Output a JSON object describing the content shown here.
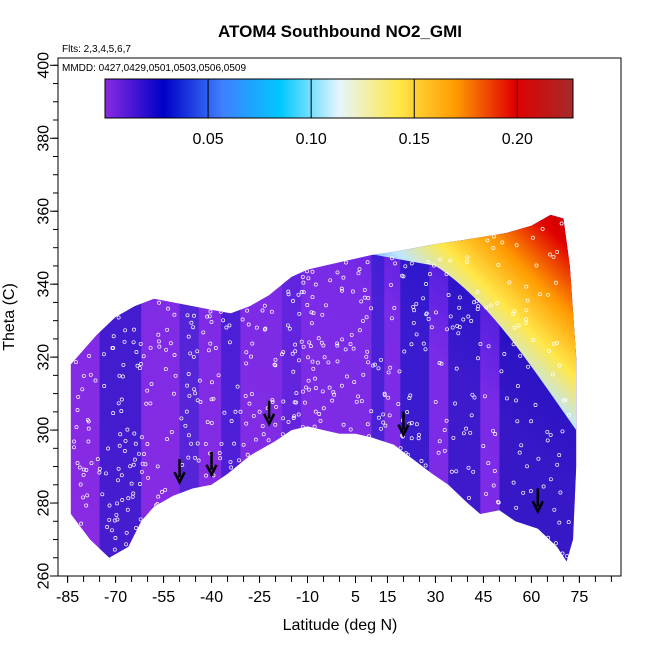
{
  "chart_data": {
    "type": "heatmap",
    "title": "ATOM4 Southbound NO2_GMI",
    "flights_label": "Flts: 2,3,4,5,6,7",
    "dates_label": "MMDD: 0427,0429,0501,0503,0506,0509",
    "xlabel": "Latitude (deg N)",
    "ylabel": "Theta (C)",
    "xlim": [
      -88,
      88
    ],
    "ylim": [
      260,
      402
    ],
    "x_ticks": [
      -85,
      -70,
      -55,
      -40,
      -25,
      -10,
      5,
      15,
      30,
      45,
      60,
      75
    ],
    "y_ticks": [
      260,
      280,
      300,
      320,
      340,
      360,
      380,
      400
    ],
    "colorbar": {
      "range": [
        0,
        0.227
      ],
      "ticks": [
        0.05,
        0.1,
        0.15,
        0.2
      ],
      "tick_labels": [
        "0.05",
        "0.10",
        "0.15",
        "0.20"
      ],
      "colors": [
        "#8a2be2",
        "#0000c8",
        "#3f7fff",
        "#00c8ff",
        "#e6f5ff",
        "#ffe84a",
        "#ff9a00",
        "#e00000",
        "#a52a2a"
      ]
    },
    "field_bottom_boundary": [
      [
        -84,
        277
      ],
      [
        -78,
        270
      ],
      [
        -72,
        265
      ],
      [
        -66,
        268
      ],
      [
        -62,
        275
      ],
      [
        -58,
        279
      ],
      [
        -52,
        282
      ],
      [
        -46,
        284
      ],
      [
        -40,
        285
      ],
      [
        -35,
        288
      ],
      [
        -28,
        293
      ],
      [
        -20,
        297
      ],
      [
        -15,
        300
      ],
      [
        -10,
        301
      ],
      [
        -5,
        300
      ],
      [
        0,
        299
      ],
      [
        5,
        299
      ],
      [
        10,
        298
      ],
      [
        17,
        296
      ],
      [
        23,
        292
      ],
      [
        29,
        288
      ],
      [
        34,
        285
      ],
      [
        40,
        280
      ],
      [
        44,
        277
      ],
      [
        50,
        278
      ],
      [
        55,
        275
      ],
      [
        62,
        273
      ],
      [
        68,
        268
      ],
      [
        71,
        264
      ]
    ],
    "field_top_boundary": [
      [
        -84,
        318
      ],
      [
        -80,
        322
      ],
      [
        -76,
        326
      ],
      [
        -70,
        331
      ],
      [
        -64,
        334
      ],
      [
        -58,
        336
      ],
      [
        -52,
        335
      ],
      [
        -46,
        334
      ],
      [
        -40,
        333
      ],
      [
        -34,
        332
      ],
      [
        -28,
        334
      ],
      [
        -22,
        337
      ],
      [
        -15,
        342
      ],
      [
        -10,
        344
      ],
      [
        -5,
        345
      ],
      [
        0,
        346
      ],
      [
        5,
        347
      ],
      [
        10,
        348
      ],
      [
        18,
        349
      ],
      [
        24,
        350
      ],
      [
        30,
        351
      ],
      [
        38,
        352
      ],
      [
        45,
        353
      ],
      [
        52,
        354
      ],
      [
        60,
        356
      ],
      [
        66,
        359
      ],
      [
        70,
        358
      ],
      [
        72,
        345
      ],
      [
        74,
        320
      ],
      [
        74,
        290
      ],
      [
        73,
        270
      ]
    ],
    "high_concentration_region": {
      "description_values": [
        {
          "lat": 67,
          "theta": 355,
          "no2": 0.22
        },
        {
          "lat": 60,
          "theta": 350,
          "no2": 0.18
        },
        {
          "lat": 55,
          "theta": 346,
          "no2": 0.13
        },
        {
          "lat": 50,
          "theta": 340,
          "no2": 0.08
        },
        {
          "lat": 45,
          "theta": 334,
          "no2": 0.05
        }
      ]
    },
    "arrows_latitude": [
      -22,
      -40,
      -50,
      20,
      62
    ],
    "arrows_theta": [
      302,
      288,
      286,
      299,
      278
    ]
  }
}
